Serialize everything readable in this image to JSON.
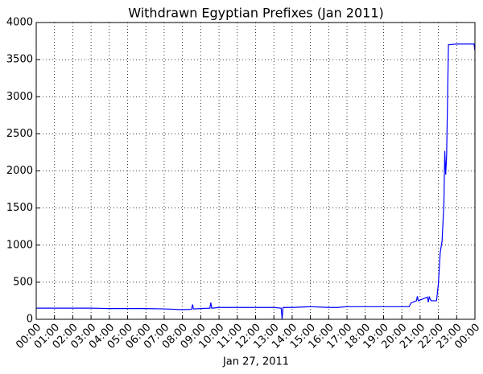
{
  "chart_data": {
    "type": "line",
    "title": "Withdrawn Egyptian Prefixes (Jan 2011)",
    "x_label": "Jan 27, 2011",
    "xlim": [
      0,
      24
    ],
    "xticks": [
      {
        "value": 0,
        "label": "00:00"
      },
      {
        "value": 1,
        "label": "01:00"
      },
      {
        "value": 2,
        "label": "02:00"
      },
      {
        "value": 3,
        "label": "03:00"
      },
      {
        "value": 4,
        "label": "04:00"
      },
      {
        "value": 5,
        "label": "05:00"
      },
      {
        "value": 6,
        "label": "06:00"
      },
      {
        "value": 7,
        "label": "07:00"
      },
      {
        "value": 8,
        "label": "08:00"
      },
      {
        "value": 9,
        "label": "09:00"
      },
      {
        "value": 10,
        "label": "10:00"
      },
      {
        "value": 11,
        "label": "11:00"
      },
      {
        "value": 12,
        "label": "12:00"
      },
      {
        "value": 13,
        "label": "13:00"
      },
      {
        "value": 14,
        "label": "14:00"
      },
      {
        "value": 15,
        "label": "15:00"
      },
      {
        "value": 16,
        "label": "16:00"
      },
      {
        "value": 17,
        "label": "17:00"
      },
      {
        "value": 18,
        "label": "18:00"
      },
      {
        "value": 19,
        "label": "19:00"
      },
      {
        "value": 20,
        "label": "20:00"
      },
      {
        "value": 21,
        "label": "21:00"
      },
      {
        "value": 22,
        "label": "22:00"
      },
      {
        "value": 23,
        "label": "23:00"
      },
      {
        "value": 24,
        "label": "00:00"
      }
    ],
    "ylim": [
      0,
      4000
    ],
    "yticks": [
      0,
      500,
      1000,
      1500,
      2000,
      2500,
      3000,
      3500,
      4000
    ],
    "grid": true,
    "x": [
      0,
      1,
      2,
      3,
      4,
      5,
      6,
      7,
      8,
      8.5,
      8.55,
      8.6,
      9,
      9.5,
      9.55,
      9.6,
      10,
      11,
      12,
      13,
      13.4,
      13.45,
      13.5,
      14,
      15,
      16,
      16.5,
      17,
      18,
      19,
      20,
      20.4,
      20.5,
      20.8,
      20.85,
      20.9,
      21,
      21.4,
      21.45,
      21.5,
      21.6,
      21.9,
      22.0,
      22.1,
      22.2,
      22.3,
      22.35,
      22.4,
      22.45,
      22.55,
      23,
      23.95,
      24
    ],
    "series": [
      {
        "color": "#0000ff",
        "values": [
          150,
          150,
          150,
          150,
          145,
          145,
          145,
          140,
          130,
          135,
          200,
          140,
          145,
          150,
          225,
          150,
          160,
          160,
          160,
          160,
          150,
          0,
          160,
          160,
          170,
          160,
          160,
          170,
          170,
          170,
          170,
          170,
          220,
          250,
          310,
          250,
          260,
          300,
          230,
          300,
          250,
          250,
          480,
          900,
          1050,
          1550,
          2270,
          1950,
          2200,
          3700,
          3710,
          3710,
          3620
        ]
      }
    ]
  }
}
